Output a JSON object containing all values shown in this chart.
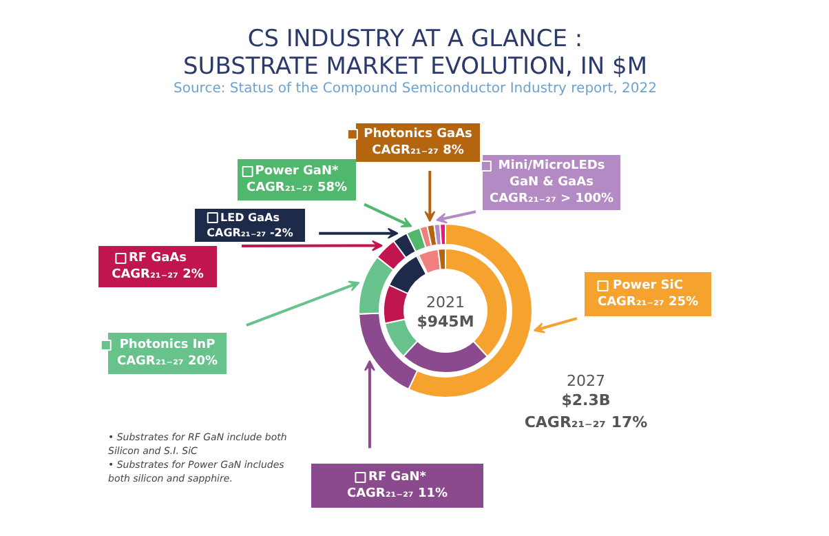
{
  "chart_data": {
    "type": "donut",
    "title": "CS INDUSTRY AT A GLANCE :\nSUBSTRATE MARKET EVOLUTION, IN $M",
    "subtitle": "Source: Status of the Compound Semiconductor Industry report, 2022",
    "categories": [
      "Power SiC",
      "RF GaN*",
      "Photonics InP",
      "RF GaAs",
      "LED GaAs",
      "Power GaN*",
      null,
      "Photonics GaAs",
      "Mini/MicroLEDs\nGaN & GaAs",
      null
    ],
    "legend": "left",
    "colors": [
      "#f6a22f",
      "#8c4a8e",
      "#67c28b",
      "#c0154f",
      "#1e2a4a",
      "#4fb86d",
      "#f08080",
      "#b5650f",
      "#b48ac4",
      "#e0197d"
    ],
    "series": [
      {
        "name": "2021",
        "values": [
          38.2,
          23.7,
          9.8,
          10.1,
          10.5,
          0.5,
          5.3,
          1.9,
          0,
          0
        ]
      },
      {
        "name": "2027",
        "values": [
          57.0,
          17.4,
          11.2,
          4.2,
          2.8,
          2.6,
          1.4,
          1.3,
          1.1,
          1.0
        ]
      }
    ],
    "annotations": [
      {
        "text": "CAGR₂₁₋₂₇ 25%",
        "x": "Power SiC"
      },
      {
        "text": "CAGR₂₁₋₂₇ 11%",
        "x": "RF GaN*"
      },
      {
        "text": "CAGR₂₁₋₂₇ 20%",
        "x": "Photonics InP"
      },
      {
        "text": "CAGR₂₁₋₂₇ 2%",
        "x": "RF GaAs"
      },
      {
        "text": "CAGR₂₁₋₂₇ -2%",
        "x": "LED GaAs"
      },
      {
        "text": "CAGR₂₁₋₂₇ 58%",
        "x": "Power GaN*"
      },
      {
        "text": "CAGR₂₁₋₂₇ 8%",
        "x": "Photonics GaAs"
      },
      {
        "text": "CAGR₂₁₋₂₇ > 100%",
        "x": "Mini/MicroLEDs\nGaN & GaAs"
      },
      "$945M",
      "$2.3B",
      "CAGR₂₁₋₂₇ 17%",
      "•  Substrates for RF GaN include both\n    Silicon and S.I. SiC",
      "•  Substrates for Power GaN includes\n    both silicon and sapphire."
    ]
  }
}
